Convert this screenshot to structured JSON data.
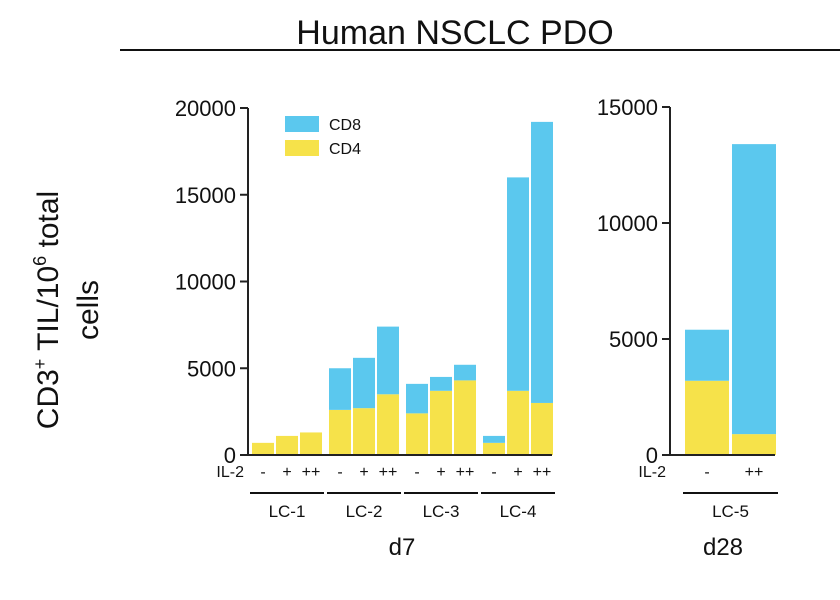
{
  "figure": {
    "title": "Human NSCLC PDO",
    "ylabel_line1": "CD3",
    "ylabel_sup1": "+",
    "ylabel_mid": " TIL/10",
    "ylabel_sup2": "6",
    "ylabel_end": " total",
    "ylabel_line2": "cells"
  },
  "colors": {
    "CD8": "#5BC8EE",
    "CD4": "#F6E24A"
  },
  "chart_data": [
    {
      "type": "bar",
      "stacked": true,
      "day_label": "d7",
      "il2_label": "IL-2",
      "ylim": [
        0,
        20000
      ],
      "yticks": [
        "0",
        "5000",
        "10000",
        "15000",
        "20000"
      ],
      "ytick_values": [
        0,
        5000,
        10000,
        15000,
        20000
      ],
      "legend": [
        "CD8",
        "CD4"
      ],
      "groups": [
        {
          "label": "LC-1",
          "il2": [
            "-",
            "+",
            "++"
          ]
        },
        {
          "label": "LC-2",
          "il2": [
            "-",
            "+",
            "++"
          ]
        },
        {
          "label": "LC-3",
          "il2": [
            "-",
            "+",
            "++"
          ]
        },
        {
          "label": "LC-4",
          "il2": [
            "-",
            "+",
            "++"
          ]
        }
      ],
      "series": [
        {
          "name": "CD4",
          "values": [
            700,
            1100,
            1300,
            2600,
            2700,
            3500,
            2400,
            3700,
            4300,
            700,
            3700,
            3000
          ]
        },
        {
          "name": "CD8",
          "values": [
            0,
            0,
            0,
            2400,
            2900,
            3900,
            1700,
            800,
            900,
            400,
            12300,
            16200
          ]
        }
      ]
    },
    {
      "type": "bar",
      "stacked": true,
      "day_label": "d28",
      "il2_label": "IL-2",
      "ylim": [
        0,
        15000
      ],
      "yticks": [
        "0",
        "5000",
        "10000",
        "15000"
      ],
      "ytick_values": [
        0,
        5000,
        10000,
        15000
      ],
      "groups": [
        {
          "label": "LC-5",
          "il2": [
            "-",
            "++"
          ]
        }
      ],
      "series": [
        {
          "name": "CD4",
          "values": [
            3200,
            900
          ]
        },
        {
          "name": "CD8",
          "values": [
            2200,
            12500
          ]
        }
      ]
    }
  ]
}
